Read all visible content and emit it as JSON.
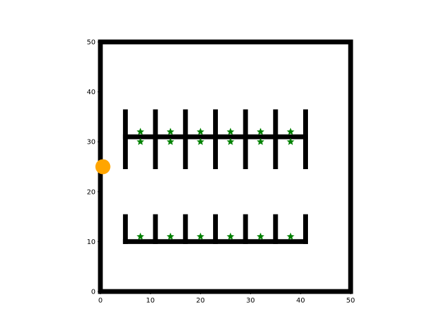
{
  "chart_data": {
    "type": "scatter",
    "title": "",
    "xlabel": "",
    "ylabel": "",
    "xlim": [
      0,
      50
    ],
    "ylim": [
      0,
      50
    ],
    "xticks": [
      0,
      10,
      20,
      30,
      40,
      50
    ],
    "yticks": [
      0,
      10,
      20,
      30,
      40,
      50
    ],
    "grid": false,
    "wall_color": "#000000",
    "boundary": [
      [
        0,
        0
      ],
      [
        50,
        0
      ],
      [
        50,
        50
      ],
      [
        0,
        50
      ]
    ],
    "walls": [
      {
        "x1": 5,
        "y1": 31,
        "x2": 41,
        "y2": 31
      },
      {
        "x1": 5,
        "y1": 25,
        "x2": 5,
        "y2": 36
      },
      {
        "x1": 11,
        "y1": 25,
        "x2": 11,
        "y2": 36
      },
      {
        "x1": 17,
        "y1": 25,
        "x2": 17,
        "y2": 36
      },
      {
        "x1": 23,
        "y1": 25,
        "x2": 23,
        "y2": 36
      },
      {
        "x1": 29,
        "y1": 25,
        "x2": 29,
        "y2": 36
      },
      {
        "x1": 35,
        "y1": 25,
        "x2": 35,
        "y2": 36
      },
      {
        "x1": 41,
        "y1": 25,
        "x2": 41,
        "y2": 36
      },
      {
        "x1": 5,
        "y1": 10,
        "x2": 41,
        "y2": 10
      },
      {
        "x1": 5,
        "y1": 10,
        "x2": 5,
        "y2": 15
      },
      {
        "x1": 11,
        "y1": 10,
        "x2": 11,
        "y2": 15
      },
      {
        "x1": 17,
        "y1": 10,
        "x2": 17,
        "y2": 15
      },
      {
        "x1": 23,
        "y1": 10,
        "x2": 23,
        "y2": 15
      },
      {
        "x1": 29,
        "y1": 10,
        "x2": 29,
        "y2": 15
      },
      {
        "x1": 35,
        "y1": 10,
        "x2": 35,
        "y2": 15
      },
      {
        "x1": 41,
        "y1": 10,
        "x2": 41,
        "y2": 15
      }
    ],
    "goals": {
      "color": "#008000",
      "marker": "star",
      "points": [
        [
          8,
          32
        ],
        [
          14,
          32
        ],
        [
          20,
          32
        ],
        [
          26,
          32
        ],
        [
          32,
          32
        ],
        [
          38,
          32
        ],
        [
          8,
          30
        ],
        [
          14,
          30
        ],
        [
          20,
          30
        ],
        [
          26,
          30
        ],
        [
          32,
          30
        ],
        [
          38,
          30
        ],
        [
          8,
          11
        ],
        [
          14,
          11
        ],
        [
          20,
          11
        ],
        [
          26,
          11
        ],
        [
          32,
          11
        ],
        [
          38,
          11
        ]
      ]
    },
    "agent": {
      "color": "#FFA500",
      "x": 0.5,
      "y": 25,
      "radius": 1.5
    }
  }
}
